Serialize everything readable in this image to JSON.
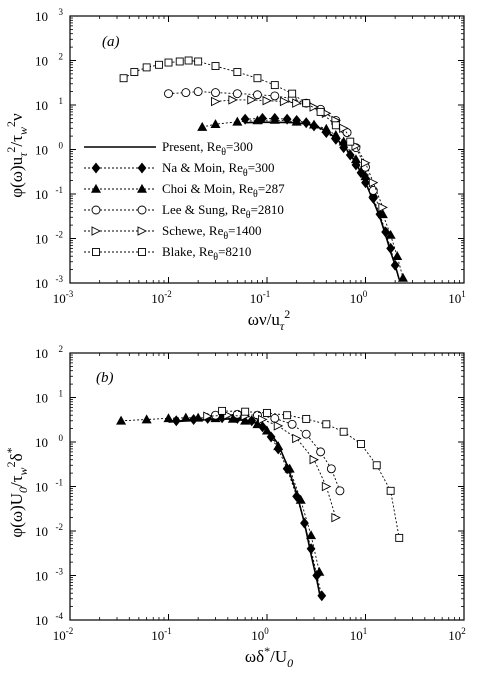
{
  "chart_data": [
    {
      "panel": "(a)",
      "type": "line",
      "xscale": "log",
      "yscale": "log",
      "xlim": [
        0.001,
        10
      ],
      "ylim": [
        0.001,
        1000
      ],
      "xticks": [
        "10",
        "10",
        "10",
        "10",
        "10"
      ],
      "xtick_exps": [
        "-3",
        "-2",
        "-1",
        "0",
        "1"
      ],
      "yticks": [
        "10",
        "10",
        "10",
        "10",
        "10",
        "10",
        "10"
      ],
      "ytick_exps": [
        "-3",
        "-2",
        "-1",
        "0",
        "1",
        "2",
        "3"
      ],
      "xlabel": "ων/u_τ²",
      "ylabel": "φ(ω)u_τ²/τ_w²ν",
      "legend_position": "left",
      "series": [
        {
          "name": "Present, Reθ=300",
          "marker": "none",
          "style": "solid",
          "x": [
            0.06,
            0.1,
            0.2,
            0.3,
            0.4,
            0.5,
            0.6,
            0.7,
            0.8,
            0.9,
            1.0,
            1.2,
            1.4,
            1.6,
            1.8,
            2.0,
            2.2
          ],
          "y": [
            4.0,
            4.1,
            4.0,
            3.5,
            2.6,
            1.8,
            1.2,
            0.8,
            0.5,
            0.3,
            0.18,
            0.07,
            0.03,
            0.012,
            0.005,
            0.0025,
            0.0012
          ]
        },
        {
          "name": "Na & Moin, Reθ=300",
          "marker": "filled-diamond",
          "style": "dotted",
          "x": [
            0.06,
            0.09,
            0.12,
            0.16,
            0.2,
            0.25,
            0.3,
            0.4,
            0.5,
            0.6,
            0.7,
            0.8,
            0.9,
            1.0,
            1.2,
            1.4,
            1.6,
            1.8,
            2.0
          ],
          "y": [
            4.8,
            5.0,
            5.0,
            4.8,
            4.5,
            4.0,
            3.4,
            2.4,
            1.7,
            1.1,
            0.75,
            0.45,
            0.3,
            0.18,
            0.08,
            0.035,
            0.014,
            0.006,
            0.0025
          ]
        },
        {
          "name": "Choi & Moin, Reθ=287",
          "marker": "filled-triangle",
          "style": "dotted",
          "x": [
            0.022,
            0.03,
            0.05,
            0.08,
            0.12,
            0.2,
            0.3,
            0.4,
            0.5,
            0.6,
            0.8,
            1.0,
            1.2,
            1.5,
            1.8,
            2.1,
            2.4
          ],
          "y": [
            3.2,
            3.7,
            4.2,
            4.5,
            4.6,
            4.2,
            3.6,
            2.9,
            2.1,
            1.5,
            0.6,
            0.25,
            0.1,
            0.035,
            0.012,
            0.004,
            0.0013
          ]
        },
        {
          "name": "Lee & Sung, Reθ=2810",
          "marker": "open-circle",
          "style": "dotted",
          "x": [
            0.01,
            0.015,
            0.02,
            0.03,
            0.05,
            0.08,
            0.12,
            0.18,
            0.25,
            0.35,
            0.5,
            0.65,
            0.8,
            1.0,
            1.2
          ],
          "y": [
            18,
            19,
            20,
            19,
            18,
            17,
            16,
            14,
            11,
            8,
            4.5,
            2.4,
            1.1,
            0.4,
            0.12
          ]
        },
        {
          "name": "Schewe, Reθ=1400",
          "marker": "open-triangle-right",
          "style": "dotted",
          "x": [
            0.03,
            0.045,
            0.07,
            0.1,
            0.15,
            0.2,
            0.3,
            0.4,
            0.5,
            0.6,
            0.8,
            1.0,
            1.2,
            1.5
          ],
          "y": [
            12,
            13,
            13,
            12.5,
            12,
            11,
            9,
            6.5,
            4.5,
            3.0,
            1.2,
            0.5,
            0.18,
            0.05
          ]
        },
        {
          "name": "Blake, Reθ=8210",
          "marker": "open-square",
          "style": "dotted",
          "x": [
            0.0035,
            0.0045,
            0.006,
            0.008,
            0.01,
            0.013,
            0.016,
            0.02,
            0.03,
            0.05,
            0.08,
            0.12,
            0.18,
            0.25,
            0.35,
            0.5,
            0.7
          ],
          "y": [
            40,
            55,
            70,
            80,
            90,
            95,
            100,
            95,
            75,
            55,
            40,
            28,
            18,
            11,
            7,
            3.5,
            1.5
          ]
        }
      ],
      "legend": [
        {
          "label": "Present, Re",
          "sub": "θ",
          "suffix": "=300"
        },
        {
          "label": "Na & Moin, Re",
          "sub": "θ",
          "suffix": "=300"
        },
        {
          "label": "Choi & Moin, Re",
          "sub": "θ",
          "suffix": "=287"
        },
        {
          "label": "Lee & Sung, Re",
          "sub": "θ",
          "suffix": "=2810"
        },
        {
          "label": "Schewe, Re",
          "sub": "θ",
          "suffix": "=1400"
        },
        {
          "label": "Blake, Re",
          "sub": "θ",
          "suffix": "=8210"
        }
      ]
    },
    {
      "panel": "(b)",
      "type": "line",
      "xscale": "log",
      "yscale": "log",
      "xlim": [
        0.01,
        100
      ],
      "ylim": [
        0.0001,
        100
      ],
      "xticks": [
        "10",
        "10",
        "10",
        "10",
        "10"
      ],
      "xtick_exps": [
        "-2",
        "-1",
        "0",
        "1",
        "2"
      ],
      "yticks": [
        "10",
        "10",
        "10",
        "10",
        "10",
        "10",
        "10"
      ],
      "ytick_exps": [
        "-4",
        "-3",
        "-2",
        "-1",
        "0",
        "1",
        "2"
      ],
      "xlabel": "ωδ*/U₀",
      "ylabel": "φ(ω)U₀/τ_w²δ*",
      "series": [
        {
          "name": "Present",
          "marker": "none",
          "style": "solid",
          "x": [
            0.1,
            0.2,
            0.4,
            0.7,
            1.0,
            1.3,
            1.6,
            2.0,
            2.4,
            2.8,
            3.2,
            3.5
          ],
          "y": [
            2.8,
            3.1,
            3.3,
            3.0,
            2.0,
            0.9,
            0.3,
            0.07,
            0.015,
            0.003,
            0.0008,
            0.0003
          ]
        },
        {
          "name": "Na & Moin",
          "marker": "filled-diamond",
          "style": "dotted",
          "x": [
            0.12,
            0.18,
            0.25,
            0.35,
            0.5,
            0.7,
            0.9,
            1.1,
            1.3,
            1.6,
            2.0,
            2.4,
            2.8,
            3.2,
            3.6
          ],
          "y": [
            3.0,
            3.2,
            3.4,
            3.5,
            3.4,
            3.0,
            2.2,
            1.3,
            0.7,
            0.25,
            0.06,
            0.015,
            0.004,
            0.001,
            0.00035
          ]
        },
        {
          "name": "Choi & Moin",
          "marker": "filled-triangle",
          "style": "dotted",
          "x": [
            0.033,
            0.06,
            0.1,
            0.15,
            0.2,
            0.3,
            0.45,
            0.6,
            0.8,
            1.0,
            1.3,
            1.7,
            2.2,
            2.8,
            3.4
          ],
          "y": [
            3.0,
            3.2,
            3.4,
            3.5,
            3.5,
            3.4,
            3.3,
            3.0,
            2.5,
            1.8,
            0.8,
            0.25,
            0.05,
            0.008,
            0.0012
          ]
        },
        {
          "name": "Lee & Sung",
          "marker": "open-circle",
          "style": "dotted",
          "x": [
            0.3,
            0.5,
            0.8,
            1.2,
            1.8,
            2.5,
            3.5,
            4.5,
            5.5
          ],
          "y": [
            4.0,
            4.2,
            4.0,
            3.4,
            2.5,
            1.5,
            0.6,
            0.25,
            0.08
          ]
        },
        {
          "name": "Schewe",
          "marker": "open-triangle-right",
          "style": "dotted",
          "x": [
            0.25,
            0.4,
            0.6,
            0.9,
            1.3,
            2.0,
            3.0,
            4.0,
            5.0
          ],
          "y": [
            3.8,
            4.0,
            3.8,
            3.2,
            2.3,
            1.2,
            0.4,
            0.1,
            0.02
          ]
        },
        {
          "name": "Blake",
          "marker": "open-square",
          "style": "dotted",
          "x": [
            0.35,
            0.6,
            1.0,
            1.6,
            2.5,
            4.0,
            6.0,
            9.0,
            13,
            18,
            22
          ],
          "y": [
            5.0,
            4.8,
            4.5,
            4.0,
            3.3,
            2.5,
            1.7,
            0.9,
            0.3,
            0.08,
            0.007
          ]
        }
      ]
    }
  ]
}
